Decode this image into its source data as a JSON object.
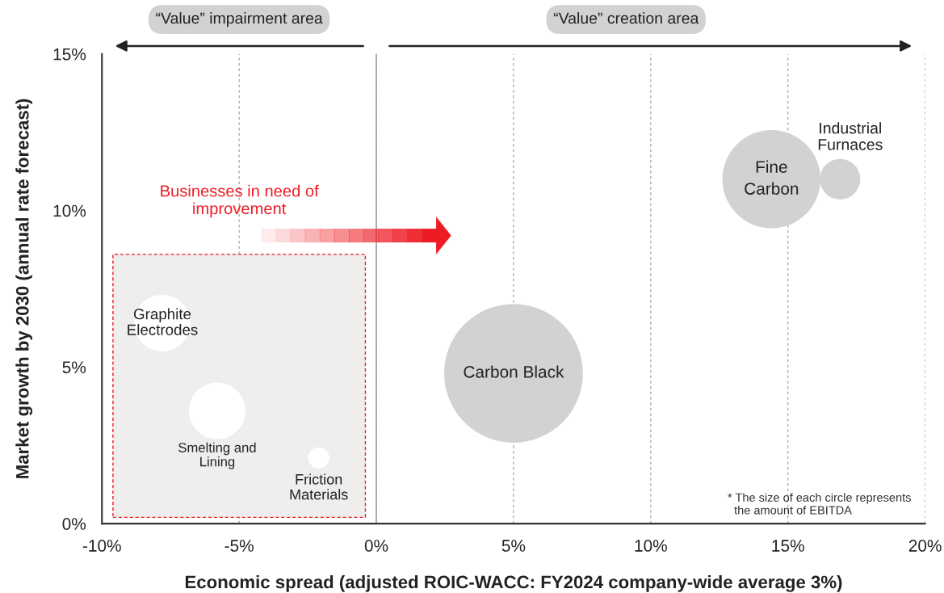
{
  "chart_data": {
    "type": "bubble",
    "xlabel": "Economic spread (adjusted ROIC-WACC: FY2024 company-wide average 3%)",
    "ylabel": "Market growth by 2030 (annual rate forecast)",
    "xlim": [
      -10,
      20
    ],
    "xticks": [
      {
        "value": -10,
        "label": "-10%"
      },
      {
        "value": -5,
        "label": "-5%"
      },
      {
        "value": 0,
        "label": "0%"
      },
      {
        "value": 5,
        "label": "5%"
      },
      {
        "value": 10,
        "label": "10%"
      },
      {
        "value": 15,
        "label": "15%"
      },
      {
        "value": 20,
        "label": "20%"
      }
    ],
    "ylim": [
      0,
      15
    ],
    "yticks": [
      {
        "value": 0,
        "label": "0%"
      },
      {
        "value": 5,
        "label": "5%"
      },
      {
        "value": 10,
        "label": "10%"
      },
      {
        "value": 15,
        "label": "15%"
      }
    ],
    "grid": "x",
    "series": [
      {
        "x": [
          5.0,
          14.4,
          16.9,
          -7.8,
          -5.8,
          -2.1
        ],
        "values": [
          4.8,
          11.0,
          11.0,
          6.4,
          3.6,
          2.1
        ],
        "sizes": [
          1,
          0.5,
          0.085,
          0.166,
          0.166,
          0.023
        ],
        "colors": [
          "#d1d2d4",
          "#d1d2d4",
          "#d1d2d4",
          "#ffffff",
          "#ffffff",
          "#ffffff"
        ]
      }
    ],
    "ref_lines": [
      {
        "axis": "x",
        "value": 0,
        "color": "#a0a0a0"
      }
    ],
    "annotations": [
      {
        "text": "Carbon Black",
        "x": 5.0,
        "y": 4.8
      },
      {
        "text": "Fine\nCarbon",
        "x": 14.4,
        "y": 11.0
      },
      {
        "text": "Industrial\nFurnaces",
        "x": 16.9,
        "y": 11.0
      },
      {
        "text": "Graphite\nElectrodes",
        "x": -7.8,
        "y": 6.4
      },
      {
        "text": "Smelting and\nLining",
        "x": -5.8,
        "y": 3.6
      },
      {
        "text": "Friction\nMaterials",
        "x": -2.1,
        "y": 2.1
      },
      "“Value” impairment area",
      "“Value” creation area",
      "Businesses in need of\nimprovement",
      "* The size of each circle represents\n  the amount of EBITDA"
    ]
  }
}
